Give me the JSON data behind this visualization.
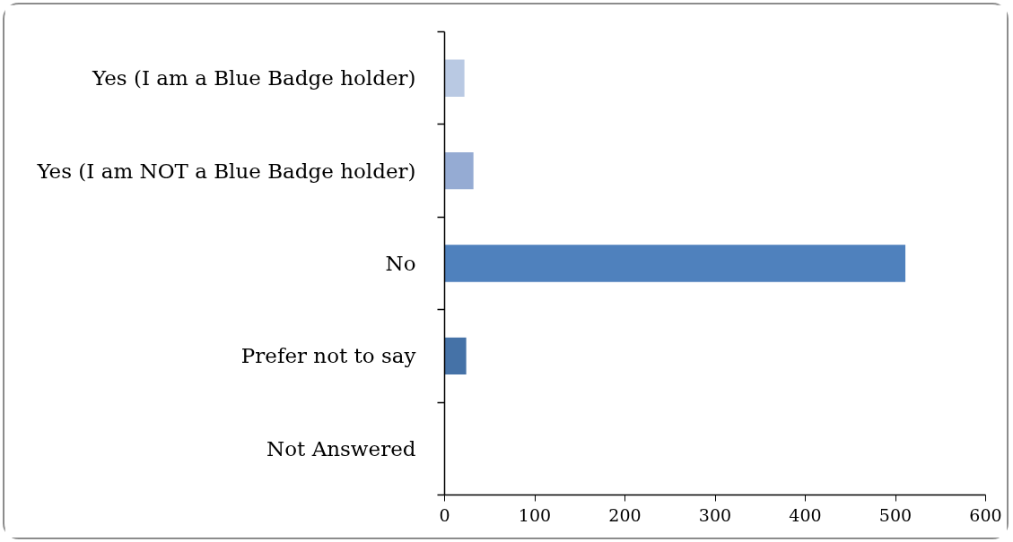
{
  "chart_data": {
    "type": "bar",
    "orientation": "horizontal",
    "categories": [
      "Yes (I am a Blue Badge holder)",
      "Yes (I am NOT a Blue Badge holder)",
      "No",
      "Prefer not to say",
      "Not Answered"
    ],
    "values": [
      22,
      32,
      511,
      24,
      0
    ],
    "colors": [
      "#b9c9e3",
      "#95abd3",
      "#4f81bd",
      "#4572a7",
      "#4f81bd"
    ],
    "xlim": [
      0,
      600
    ],
    "xticks": [
      0,
      100,
      200,
      300,
      400,
      500,
      600
    ]
  }
}
